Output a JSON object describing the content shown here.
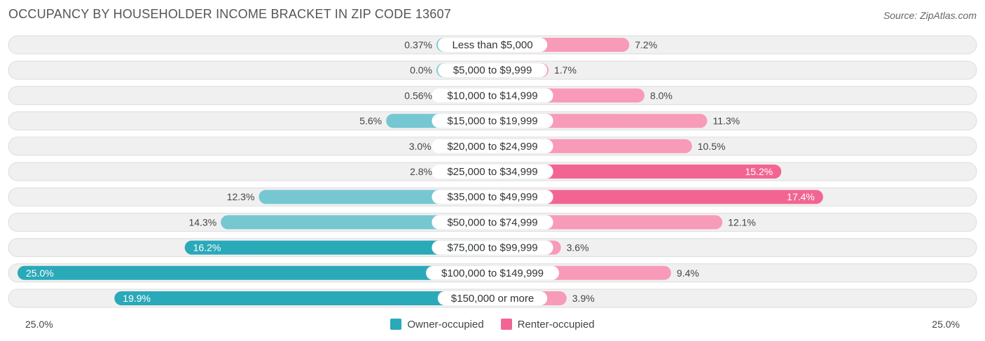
{
  "chart_data": {
    "type": "bar",
    "orientation": "horizontal-diverging",
    "title": "OCCUPANCY BY HOUSEHOLDER INCOME BRACKET IN ZIP CODE 13607",
    "source": "Source: ZipAtlas.com",
    "categories": [
      "Less than $5,000",
      "$5,000 to $9,999",
      "$10,000 to $14,999",
      "$15,000 to $19,999",
      "$20,000 to $24,999",
      "$25,000 to $34,999",
      "$35,000 to $49,999",
      "$50,000 to $74,999",
      "$75,000 to $99,999",
      "$100,000 to $149,999",
      "$150,000 or more"
    ],
    "series": [
      {
        "name": "Owner-occupied",
        "side": "left",
        "color": "#2aa9b9",
        "values": [
          0.37,
          0.0,
          0.56,
          5.6,
          3.0,
          2.8,
          12.3,
          14.3,
          16.2,
          25.0,
          19.9
        ],
        "labels": [
          "0.37%",
          "0.0%",
          "0.56%",
          "5.6%",
          "3.0%",
          "2.8%",
          "12.3%",
          "14.3%",
          "16.2%",
          "25.0%",
          "19.9%"
        ]
      },
      {
        "name": "Renter-occupied",
        "side": "right",
        "color": "#f26592",
        "values": [
          7.2,
          1.7,
          8.0,
          11.3,
          10.5,
          15.2,
          17.4,
          12.1,
          3.6,
          9.4,
          3.9
        ],
        "labels": [
          "7.2%",
          "1.7%",
          "8.0%",
          "11.3%",
          "10.5%",
          "15.2%",
          "17.4%",
          "12.1%",
          "3.6%",
          "9.4%",
          "3.9%"
        ]
      }
    ],
    "xlim": [
      -25.0,
      25.0
    ],
    "axis_left_label": "25.0%",
    "axis_right_label": "25.0%",
    "legend_position": "bottom-center"
  }
}
